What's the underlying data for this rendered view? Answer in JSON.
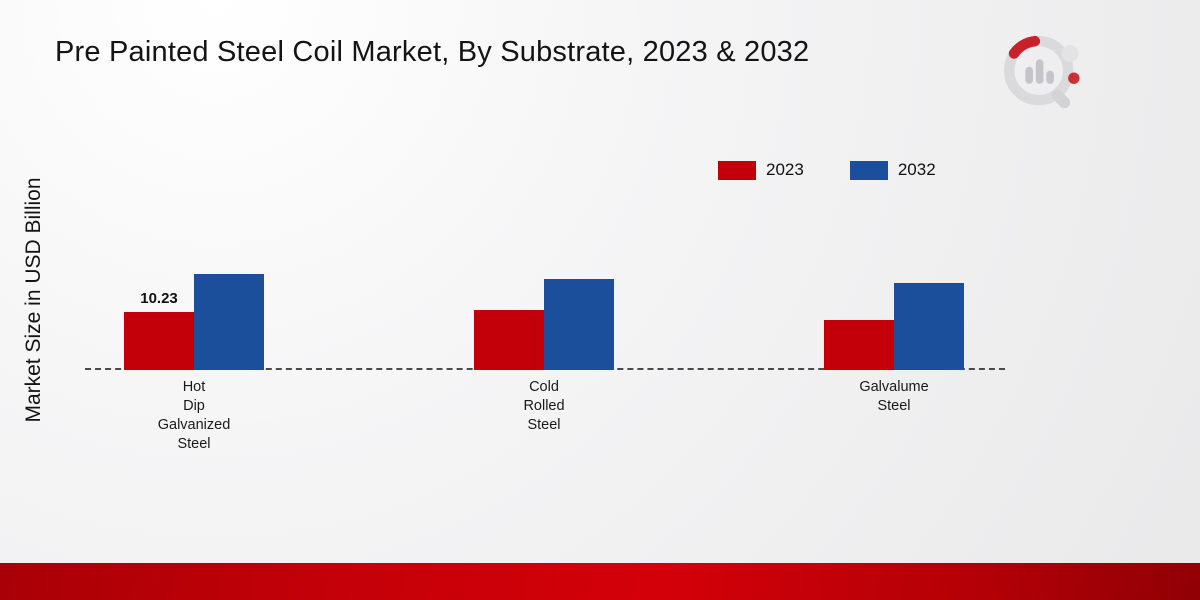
{
  "title": "Pre Painted Steel Coil Market, By Substrate, 2023 & 2032",
  "ylabel": "Market Size in USD Billion",
  "legend": [
    {
      "label": "2023",
      "color": "#c3000a"
    },
    {
      "label": "2032",
      "color": "#1b4f9c"
    }
  ],
  "logo": {
    "name": "market-research-future-logo"
  },
  "chart_data": {
    "type": "bar",
    "title": "Pre Painted Steel Coil Market, By Substrate, 2023 & 2032",
    "xlabel": "",
    "ylabel": "Market Size in USD Billion",
    "categories": [
      "Hot Dip Galvanized Steel",
      "Cold Rolled Steel",
      "Galvalume Steel"
    ],
    "category_lines": [
      [
        "Hot",
        "Dip",
        "Galvanized",
        "Steel"
      ],
      [
        "Cold",
        "Rolled",
        "Steel"
      ],
      [
        "Galvalume",
        "Steel"
      ]
    ],
    "series": [
      {
        "name": "2023",
        "color": "#c3000a",
        "values": [
          10.23,
          10.5,
          8.8
        ]
      },
      {
        "name": "2032",
        "color": "#1b4f9c",
        "values": [
          16.8,
          16.0,
          15.3
        ]
      }
    ],
    "data_labels": [
      {
        "series_index": 0,
        "category_index": 0,
        "text": "10.23"
      }
    ],
    "ylim": [
      0,
      20
    ],
    "grid": false,
    "legend_position": "top-right",
    "baseline_style": "dashed"
  }
}
